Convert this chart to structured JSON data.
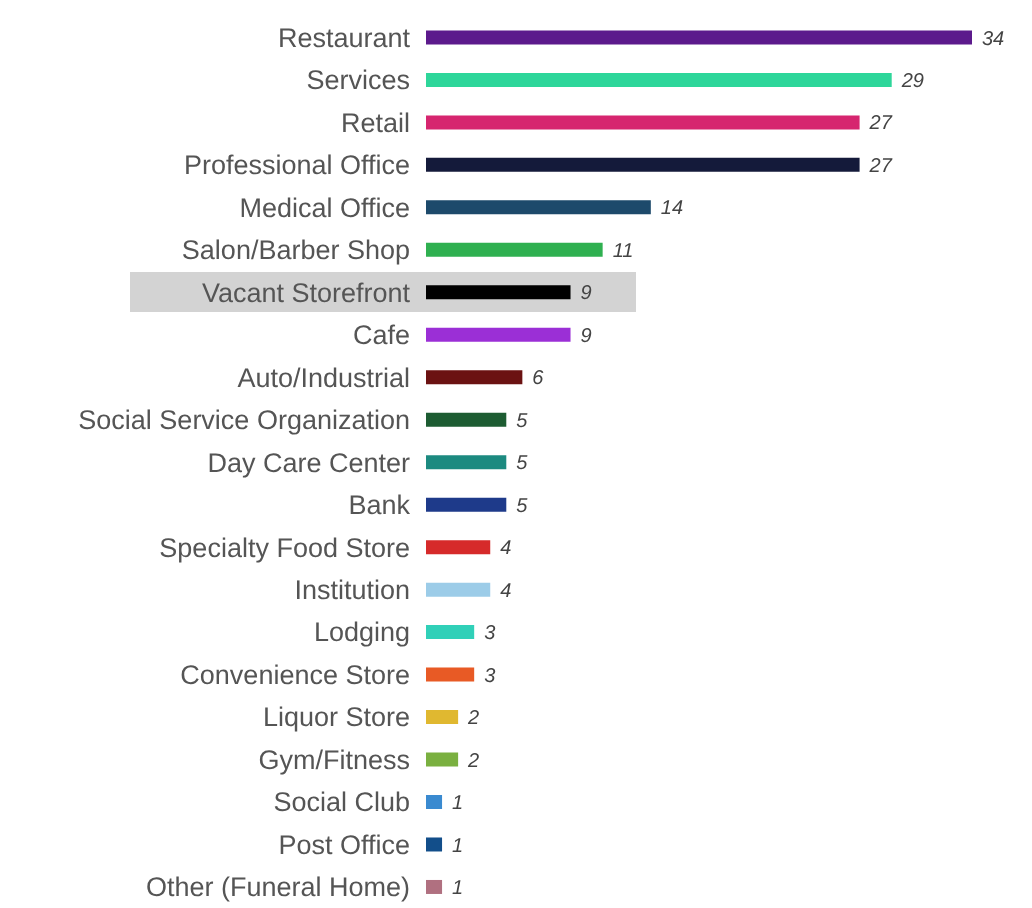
{
  "chart_data": {
    "type": "bar",
    "orientation": "horizontal",
    "data_labels": true,
    "categories": [
      "Restaurant",
      "Services",
      "Retail",
      "Professional Office",
      "Medical Office",
      "Salon/Barber Shop",
      "Vacant Storefront",
      "Cafe",
      "Auto/Industrial",
      "Social Service Organization",
      "Day Care Center",
      "Bank",
      "Specialty Food Store",
      "Institution",
      "Lodging",
      "Convenience Store",
      "Liquor Store",
      "Gym/Fitness",
      "Social Club",
      "Post Office",
      "Other (Funeral Home)"
    ],
    "values": [
      34,
      29,
      27,
      27,
      14,
      11,
      9,
      9,
      6,
      5,
      5,
      5,
      4,
      4,
      3,
      3,
      2,
      2,
      1,
      1,
      1
    ],
    "colors": [
      "#5c1a8c",
      "#2ed69a",
      "#d6256f",
      "#141a3a",
      "#1d4a6b",
      "#2fb050",
      "#000000",
      "#9b2fd6",
      "#6b1212",
      "#1d5c32",
      "#1c8a80",
      "#1e3a8a",
      "#d62a2a",
      "#9ccce8",
      "#30d0b8",
      "#e85a25",
      "#e0b830",
      "#7ab040",
      "#3a8ad0",
      "#124e8a",
      "#b07080"
    ],
    "bands": [
      {
        "axis": "y",
        "from": "Vacant Storefront",
        "to": "Vacant Storefront",
        "color": "#d3d3d3"
      }
    ]
  }
}
